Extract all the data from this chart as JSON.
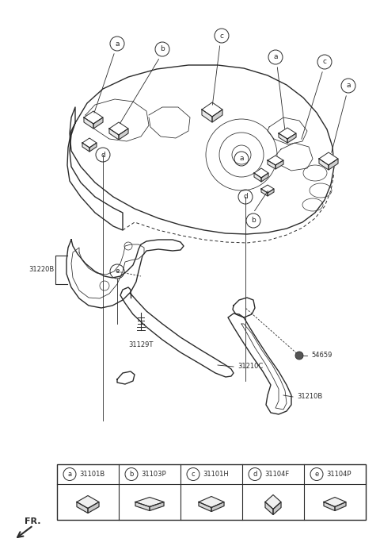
{
  "bg_color": "#ffffff",
  "line_color": "#2a2a2a",
  "legend_items": [
    {
      "label": "a",
      "code": "31101B"
    },
    {
      "label": "b",
      "code": "31103P"
    },
    {
      "label": "c",
      "code": "31101H"
    },
    {
      "label": "d",
      "code": "31104F"
    },
    {
      "label": "e",
      "code": "31104P"
    }
  ]
}
